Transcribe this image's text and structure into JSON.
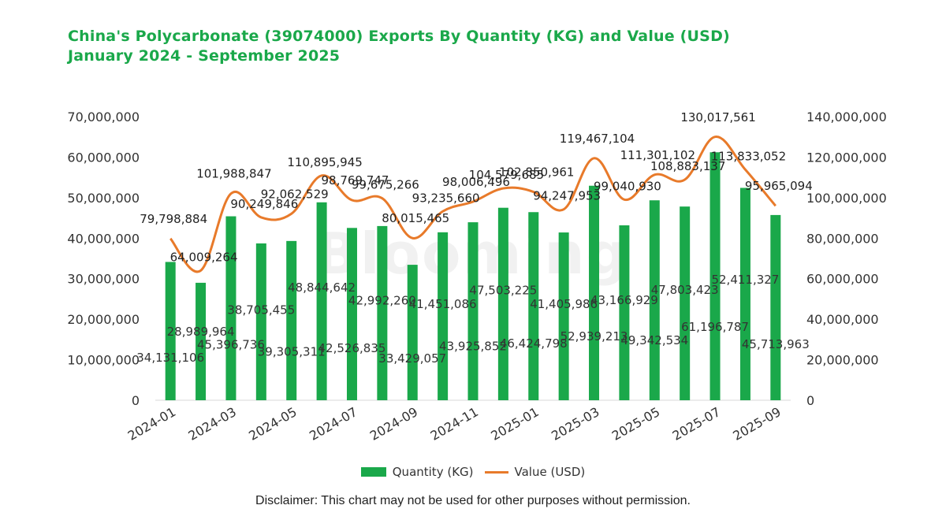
{
  "title": {
    "line1": "China's Polycarbonate (39074000) Exports By Quantity (KG) and Value (USD)",
    "line2": "January 2024 - September 2025"
  },
  "watermark": "Blooming",
  "disclaimer": "Disclaimer: This chart may not be used for other purposes without permission.",
  "colors": {
    "bar": "#1aa84a",
    "line": "#e87a2a",
    "title": "#1aa84a",
    "text": "#333333"
  },
  "chart_data": {
    "type": "bar",
    "categories": [
      "2024-01",
      "2024-02",
      "2024-03",
      "2024-04",
      "2024-05",
      "2024-06",
      "2024-07",
      "2024-08",
      "2024-09",
      "2024-10",
      "2024-11",
      "2024-12",
      "2025-01",
      "2025-02",
      "2025-03",
      "2025-04",
      "2025-05",
      "2025-06",
      "2025-07",
      "2025-08",
      "2025-09"
    ],
    "tick_labels": [
      "2024-01",
      "2024-03",
      "2024-05",
      "2024-07",
      "2024-09",
      "2024-11",
      "2025-01",
      "2025-03",
      "2025-05",
      "2025-07",
      "2025-09"
    ],
    "series": [
      {
        "name": "Quantity (KG)",
        "type": "bar",
        "axis": "left",
        "values": [
          34131106,
          28989964,
          45396736,
          38705455,
          39305311,
          48844642,
          42526835,
          42992260,
          33429057,
          41451086,
          43925852,
          47503225,
          46424798,
          41405986,
          52939213,
          43166929,
          49342534,
          47803423,
          61196787,
          52411327,
          45713963
        ],
        "labels": [
          "34,131,106",
          "28,989,964",
          "45,396,736",
          "38,705,455",
          "39,305,311",
          "48,844,642",
          "42,526,835",
          "42,992,260",
          "33,429,057",
          "41,451,086",
          "43,925,852",
          "47,503,225",
          "46,424,798",
          "41,405,986",
          "52,939,213",
          "43,166,929",
          "49,342,534",
          "47,803,423",
          "61,196,787",
          "52,411,327",
          "45,713,963"
        ]
      },
      {
        "name": "Value (USD)",
        "type": "line",
        "axis": "right",
        "values": [
          79798884,
          64009264,
          101988847,
          90249846,
          92062529,
          110895945,
          98769747,
          99675266,
          80015465,
          93235660,
          98006496,
          104579685,
          102850961,
          94247953,
          119467104,
          99040930,
          111301102,
          108883137,
          130017561,
          113833052,
          95965094
        ],
        "labels": [
          "79,798,884",
          "64,009,264",
          "101,988,847",
          "90,249,846",
          "92,062,529",
          "110,895,945",
          "98,769,747",
          "99,675,266",
          "80,015,465",
          "93,235,660",
          "98,006,496",
          "104,579,685",
          "102,850,961",
          "94,247,953",
          "119,467,104",
          "99,040,930",
          "111,301,102",
          "108,883,137",
          "130,017,561",
          "113,833,052",
          "95,965,094"
        ]
      }
    ],
    "y_left": {
      "ylim": [
        0,
        70000000
      ],
      "ticks": [
        "0",
        "10,000,000",
        "20,000,000",
        "30,000,000",
        "40,000,000",
        "50,000,000",
        "60,000,000",
        "70,000,000"
      ]
    },
    "y_right": {
      "ylim": [
        0,
        140000000
      ],
      "ticks": [
        "0",
        "20,000,000",
        "40,000,000",
        "60,000,000",
        "80,000,000",
        "100,000,000",
        "120,000,000",
        "140,000,000"
      ]
    },
    "grid": false,
    "legend": "bottom"
  }
}
